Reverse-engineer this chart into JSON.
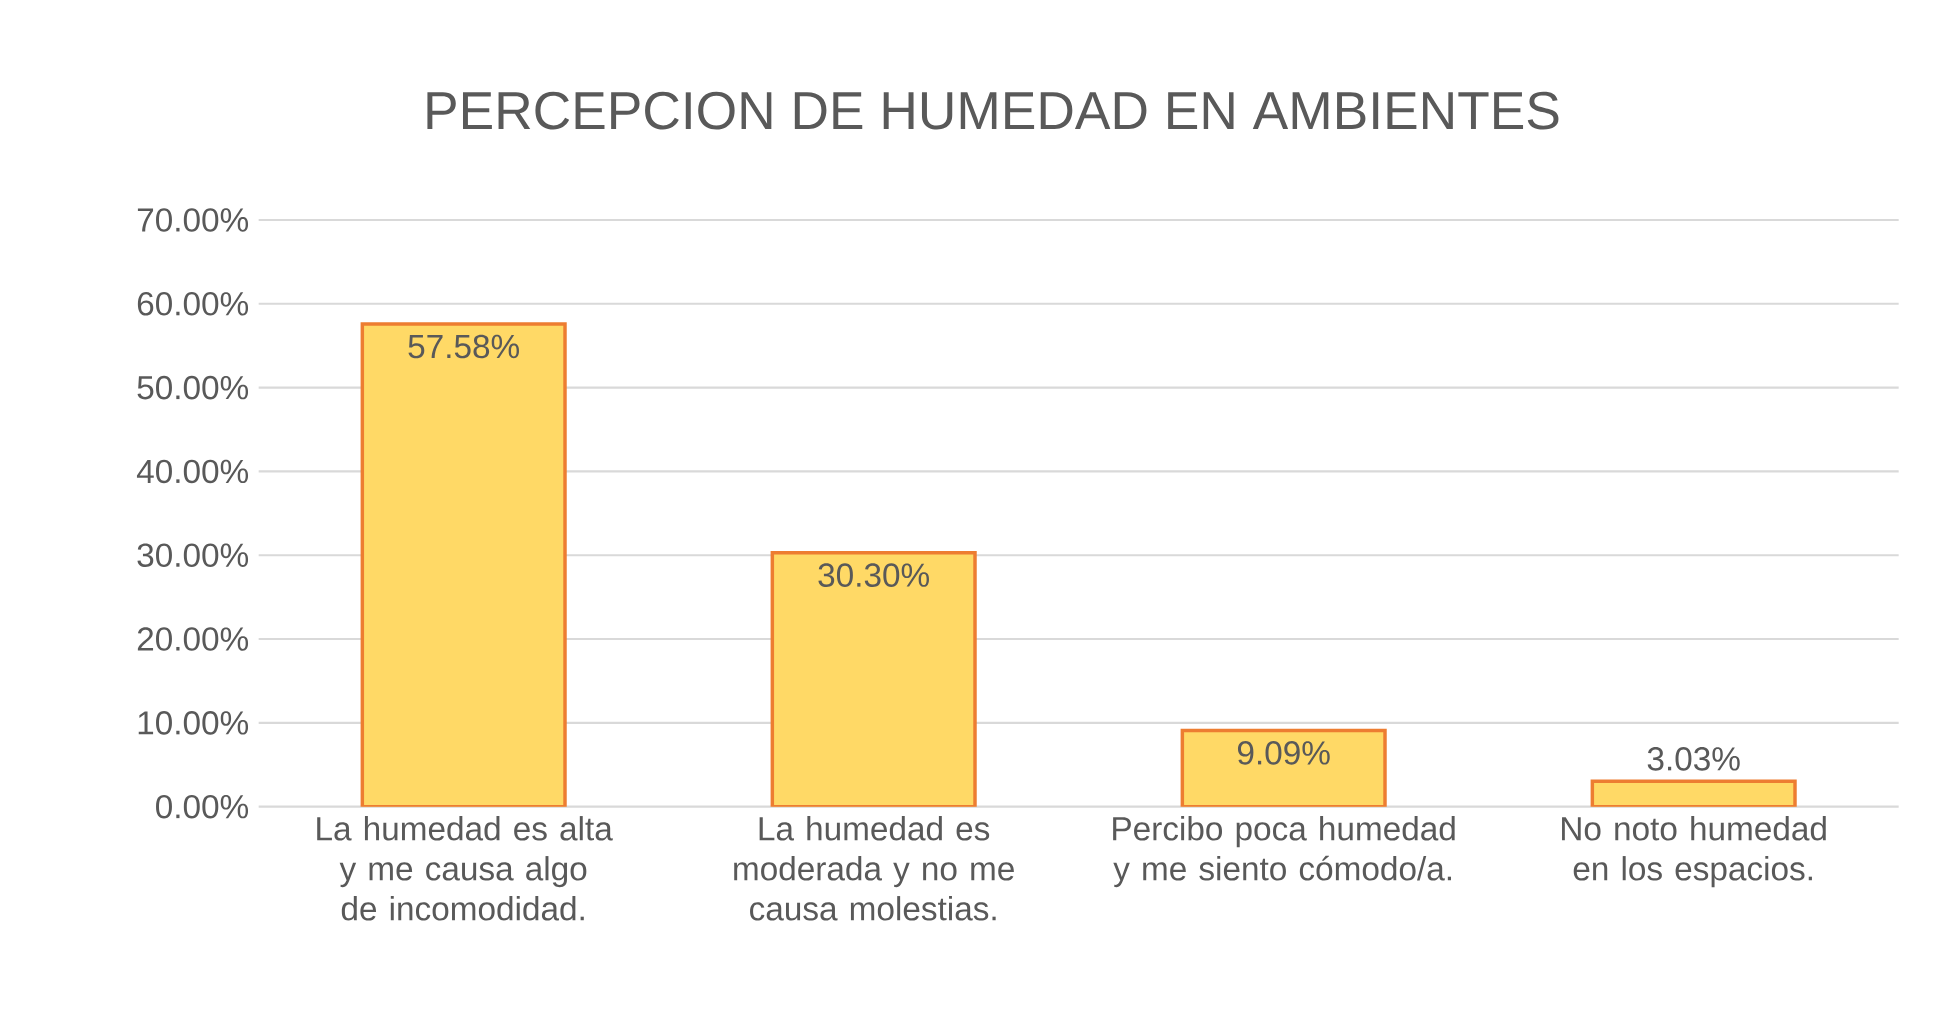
{
  "chart_data": {
    "type": "bar",
    "title": "PERCEPCION  DE HUMEDAD EN AMBIENTES",
    "categories": [
      "La humedad es alta y me causa algo de incomodidad.",
      "La humedad es moderada y no me causa molestias.",
      "Percibo poca humedad y me siento cómodo/a.",
      "No noto humedad en los espacios."
    ],
    "series": [
      {
        "color": "#ffd966",
        "values": [
          57.58,
          30.3,
          9.09,
          3.03
        ],
        "value_labels": [
          "57.58%",
          "30.30%",
          "9.09%",
          "3.03%"
        ]
      }
    ],
    "ylim": [
      0,
      70
    ],
    "yticks": [
      {
        "value": 0,
        "label": "0.00%"
      },
      {
        "value": 10,
        "label": "10.00%"
      },
      {
        "value": 20,
        "label": "20.00%"
      },
      {
        "value": 30,
        "label": "30.00%"
      },
      {
        "value": 40,
        "label": "40.00%"
      },
      {
        "value": 50,
        "label": "50.00%"
      },
      {
        "value": 60,
        "label": "60.00%"
      },
      {
        "value": 70,
        "label": "70.00%"
      }
    ],
    "grid": "y"
  }
}
